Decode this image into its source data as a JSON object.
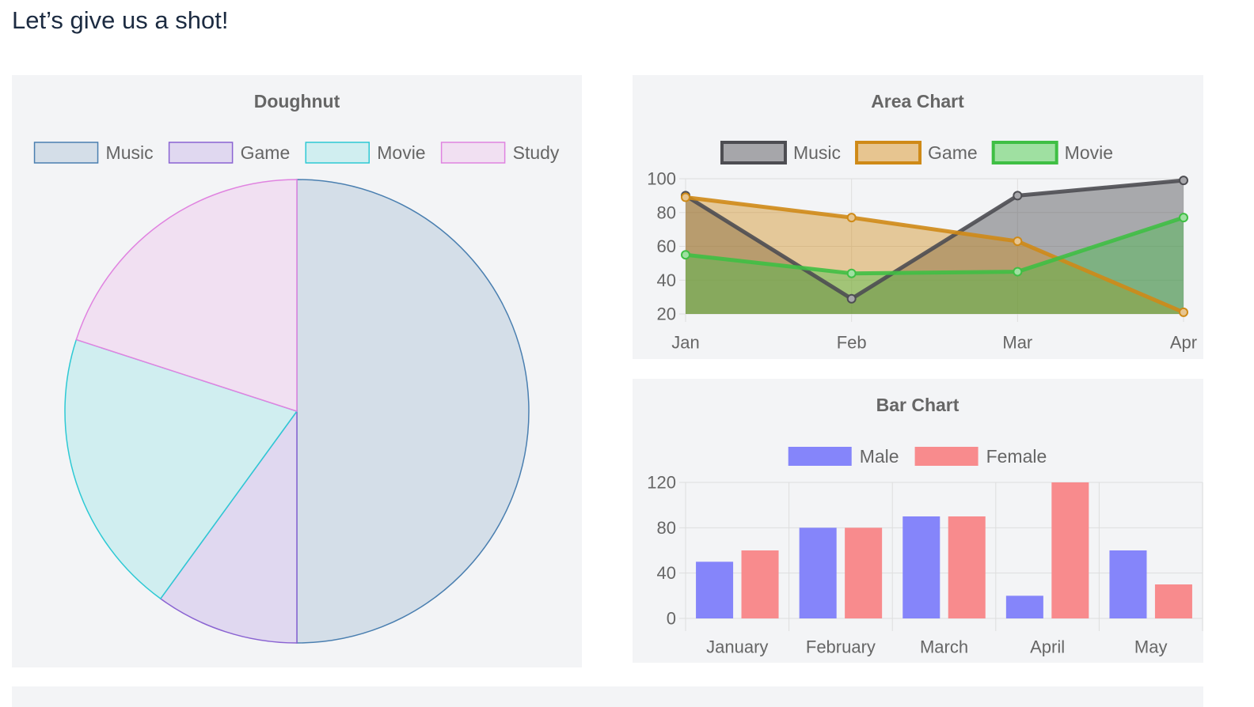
{
  "page": {
    "heading": "Let’s give us a shot!"
  },
  "chart_data": [
    {
      "id": "doughnut",
      "type": "pie",
      "title": "Doughnut",
      "legend_position": "top",
      "labels": [
        "Music",
        "Game",
        "Movie",
        "Study"
      ],
      "values": [
        50,
        10,
        20,
        20
      ],
      "border_colors": [
        "#4a7fb0",
        "#8a63d2",
        "#2dc9d4",
        "#e083e0"
      ],
      "fill_colors": [
        "#d4dee8",
        "#e0d8f0",
        "#d0eef0",
        "#f1e0f2"
      ]
    },
    {
      "id": "area",
      "type": "area",
      "title": "Area Chart",
      "legend_position": "top",
      "categories": [
        "Jan",
        "Feb",
        "Mar",
        "Apr"
      ],
      "ylim": [
        20,
        100
      ],
      "yticks": [
        100,
        80,
        60,
        40,
        20
      ],
      "grid": true,
      "series": [
        {
          "name": "Music",
          "values": [
            90,
            29,
            90,
            99
          ],
          "color": "#4d4d52",
          "fill": "rgba(77,77,82,0.45)",
          "legend_fill": "#a6a6aa"
        },
        {
          "name": "Game",
          "values": [
            89,
            77,
            63,
            21
          ],
          "color": "#cf8a17",
          "fill": "rgba(207,138,23,0.42)",
          "legend_fill": "#e7c590"
        },
        {
          "name": "Movie",
          "values": [
            55,
            44,
            45,
            77
          ],
          "color": "#3fbf44",
          "fill": "rgba(63,191,68,0.40)",
          "legend_fill": "#9fe0a1"
        }
      ]
    },
    {
      "id": "bar",
      "type": "bar",
      "title": "Bar Chart",
      "legend_position": "top",
      "categories": [
        "January",
        "February",
        "March",
        "April",
        "May"
      ],
      "ylim": [
        0,
        120
      ],
      "yticks": [
        120,
        80,
        40,
        0
      ],
      "grid": true,
      "series": [
        {
          "name": "Male",
          "values": [
            50,
            80,
            90,
            20,
            60
          ],
          "color": "#8585fa"
        },
        {
          "name": "Female",
          "values": [
            60,
            80,
            90,
            120,
            30
          ],
          "color": "#f88b8d"
        }
      ]
    }
  ]
}
